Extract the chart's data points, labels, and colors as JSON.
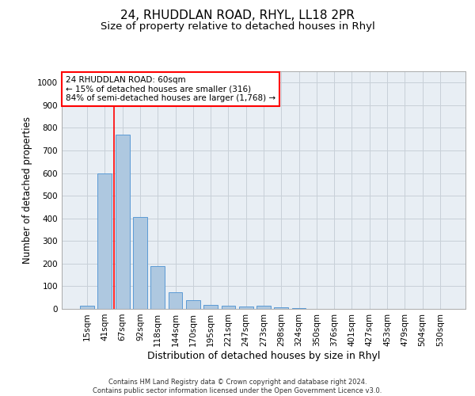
{
  "title": "24, RHUDDLAN ROAD, RHYL, LL18 2PR",
  "subtitle": "Size of property relative to detached houses in Rhyl",
  "xlabel": "Distribution of detached houses by size in Rhyl",
  "ylabel": "Number of detached properties",
  "footer_line1": "Contains HM Land Registry data © Crown copyright and database right 2024.",
  "footer_line2": "Contains public sector information licensed under the Open Government Licence v3.0.",
  "categories": [
    "15sqm",
    "41sqm",
    "67sqm",
    "92sqm",
    "118sqm",
    "144sqm",
    "170sqm",
    "195sqm",
    "221sqm",
    "247sqm",
    "273sqm",
    "298sqm",
    "324sqm",
    "350sqm",
    "376sqm",
    "401sqm",
    "427sqm",
    "453sqm",
    "479sqm",
    "504sqm",
    "530sqm"
  ],
  "bar_values": [
    15,
    600,
    770,
    405,
    190,
    75,
    38,
    18,
    15,
    10,
    13,
    8,
    5,
    0,
    0,
    0,
    0,
    0,
    0,
    0,
    0
  ],
  "bar_color": "#aec8e0",
  "bar_edge_color": "#5b9bd5",
  "vline_x": 1.5,
  "vline_color": "red",
  "annotation_text": "24 RHUDDLAN ROAD: 60sqm\n← 15% of detached houses are smaller (316)\n84% of semi-detached houses are larger (1,768) →",
  "annotation_box_color": "white",
  "annotation_box_edge_color": "red",
  "ylim": [
    0,
    1050
  ],
  "yticks": [
    0,
    100,
    200,
    300,
    400,
    500,
    600,
    700,
    800,
    900,
    1000
  ],
  "grid_color": "#c8d0d8",
  "axes_bg_color": "#e8eef4",
  "title_fontsize": 11,
  "subtitle_fontsize": 9.5,
  "tick_fontsize": 7.5,
  "ylabel_fontsize": 8.5,
  "xlabel_fontsize": 9,
  "annotation_fontsize": 7.5,
  "footer_fontsize": 6
}
